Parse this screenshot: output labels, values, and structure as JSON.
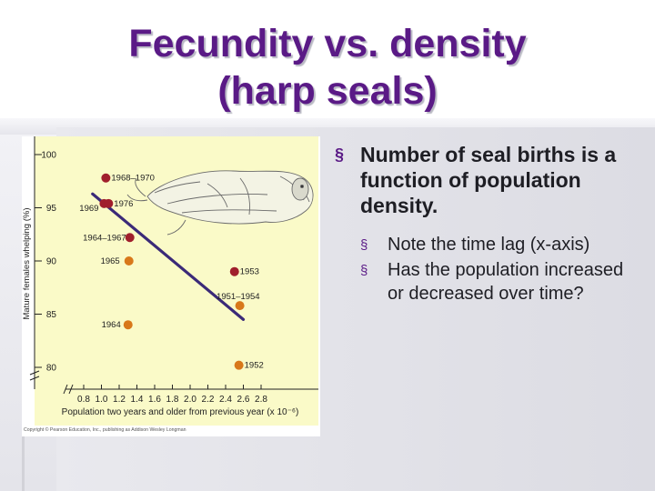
{
  "slide": {
    "title_line1": "Fecundity vs. density",
    "title_line2": "(harp seals)",
    "bullet_main": "Number of seal births is a function of population density.",
    "sub_bullets": [
      "Note the time lag (x-axis)",
      "Has the population increased or decreased over time?"
    ],
    "bullet_marker": "§",
    "colors": {
      "title": "#5a1a86",
      "figure_bg": "#fafac8",
      "line": "#3b2a78",
      "point_red": "#a01f2c",
      "point_orange": "#d8781a"
    }
  },
  "chart_data": {
    "type": "scatter",
    "xlabel": "Population two years and older from previous year (x 10⁻⁶)",
    "ylabel": "Mature females whelping (%)",
    "x_ticks": [
      "0.8",
      "1.0",
      "1.2",
      "1.4",
      "1.6",
      "1.8",
      "2.0",
      "2.2",
      "2.4",
      "2.6",
      "2.8"
    ],
    "y_ticks": [
      "80",
      "85",
      "90",
      "95",
      "100"
    ],
    "xlim": [
      0.75,
      2.9
    ],
    "ylim": [
      79,
      101
    ],
    "copyright": "Copyright © Pearson Education, Inc., publishing as Addison Wesley Longman",
    "points": [
      {
        "x": 1.05,
        "y": 97.8,
        "label": "1968–1970",
        "color": "red"
      },
      {
        "x": 1.03,
        "y": 95.4,
        "label": "1969",
        "color": "red"
      },
      {
        "x": 1.08,
        "y": 95.4,
        "label": "1976",
        "color": "red"
      },
      {
        "x": 1.32,
        "y": 92.2,
        "label": "1964–1967",
        "color": "red"
      },
      {
        "x": 1.31,
        "y": 90.0,
        "label": "1965",
        "color": "orange"
      },
      {
        "x": 1.3,
        "y": 84.0,
        "label": "1964",
        "color": "orange"
      },
      {
        "x": 2.5,
        "y": 89.0,
        "label": "1953",
        "color": "red"
      },
      {
        "x": 2.56,
        "y": 85.8,
        "label": "1951–1954",
        "color": "orange"
      },
      {
        "x": 2.55,
        "y": 80.2,
        "label": "1952",
        "color": "orange"
      }
    ],
    "trend_line": {
      "x": [
        0.9,
        2.6
      ],
      "y": [
        96.3,
        84.5
      ]
    }
  }
}
